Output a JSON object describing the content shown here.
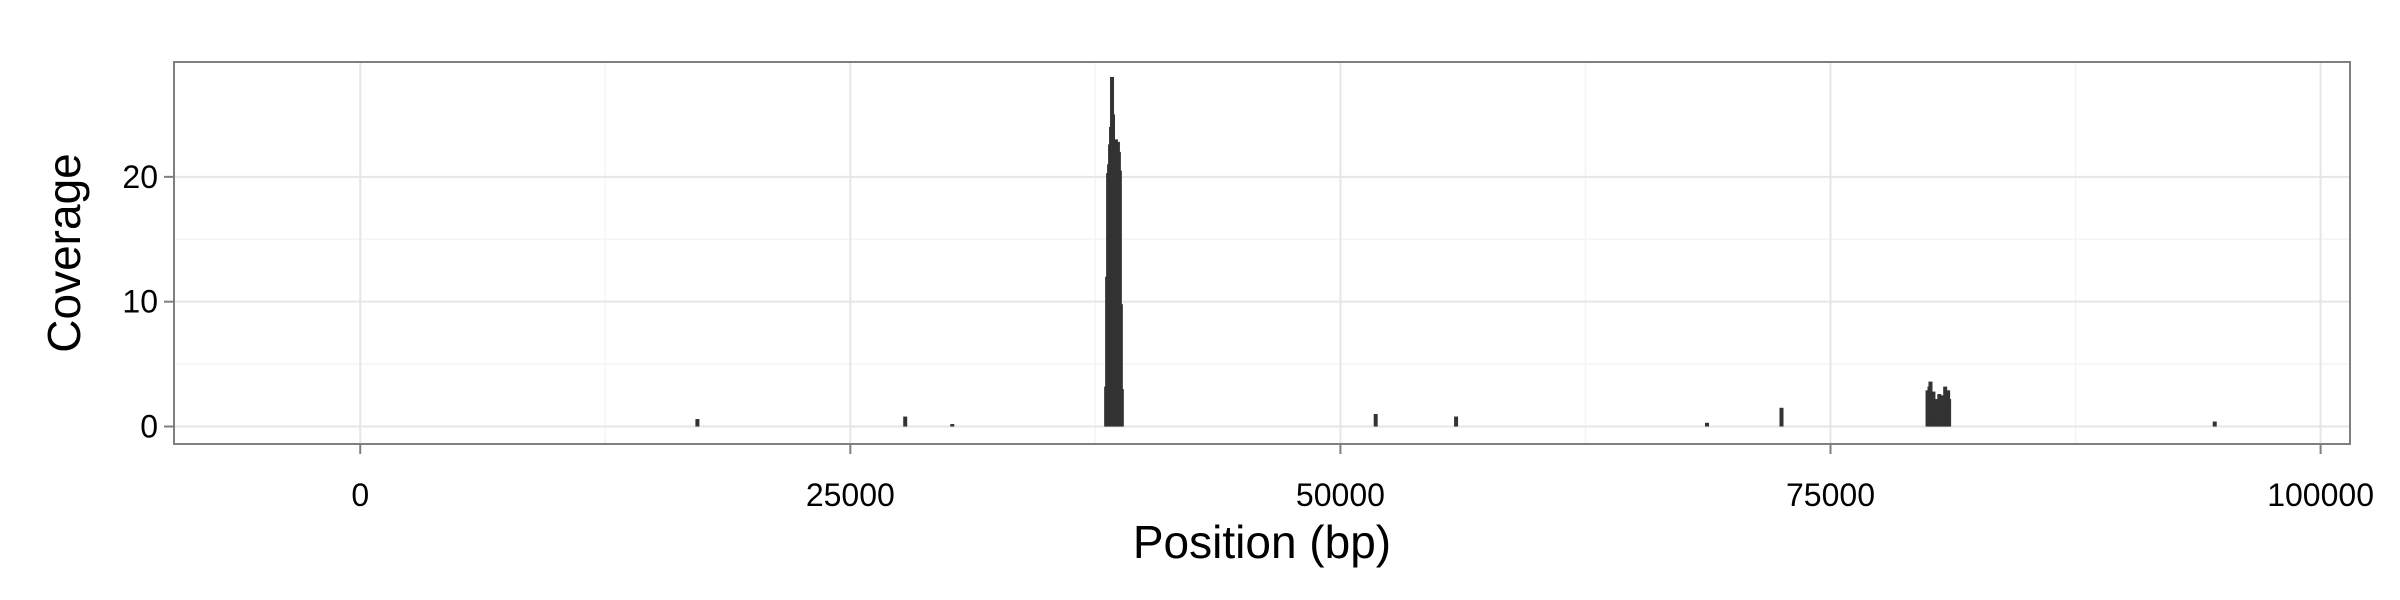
{
  "chart_data": {
    "type": "bar",
    "title": "",
    "xlabel": "Position (bp)",
    "ylabel": "Coverage",
    "xlim": [
      -9500,
      101500
    ],
    "ylim": [
      -1.4,
      29.2
    ],
    "x_ticks": [
      0,
      25000,
      50000,
      75000,
      100000
    ],
    "x_tick_labels": [
      "0",
      "25000",
      "50000",
      "75000",
      "100000"
    ],
    "y_ticks": [
      0,
      10,
      20
    ],
    "y_tick_labels": [
      "0",
      "10",
      "20"
    ],
    "grid": true,
    "legend": "none",
    "bar_color": "#333333",
    "series": [
      {
        "x": [
          17200,
          27800,
          30200,
          38050,
          38100,
          38150,
          38200,
          38250,
          38300,
          38350,
          38400,
          38450,
          38500,
          38550,
          38600,
          38650,
          38700,
          38750,
          38800,
          38850,
          51800,
          55900,
          68700,
          72500,
          79950,
          80000,
          80050,
          80100,
          80150,
          80200,
          80250,
          80300,
          80350,
          80400,
          80450,
          80500,
          80550,
          80600,
          80650,
          80700,
          80750,
          80800,
          80850,
          80900,
          80950,
          81000,
          81050,
          94600
        ],
        "y": [
          0.6,
          0.8,
          0.2,
          3.2,
          12.0,
          20.3,
          21.0,
          22.6,
          24.0,
          28.0,
          25.0,
          22.0,
          21.0,
          23.0,
          21.5,
          22.8,
          22.0,
          20.5,
          9.8,
          3.0,
          1.0,
          0.8,
          0.3,
          1.5,
          2.9,
          2.0,
          3.2,
          3.6,
          2.4,
          1.8,
          2.8,
          1.5,
          1.0,
          2.2,
          1.2,
          0.8,
          2.6,
          1.9,
          1.3,
          2.5,
          2.0,
          1.1,
          3.2,
          2.4,
          1.7,
          2.9,
          2.2,
          0.4
        ]
      }
    ]
  }
}
